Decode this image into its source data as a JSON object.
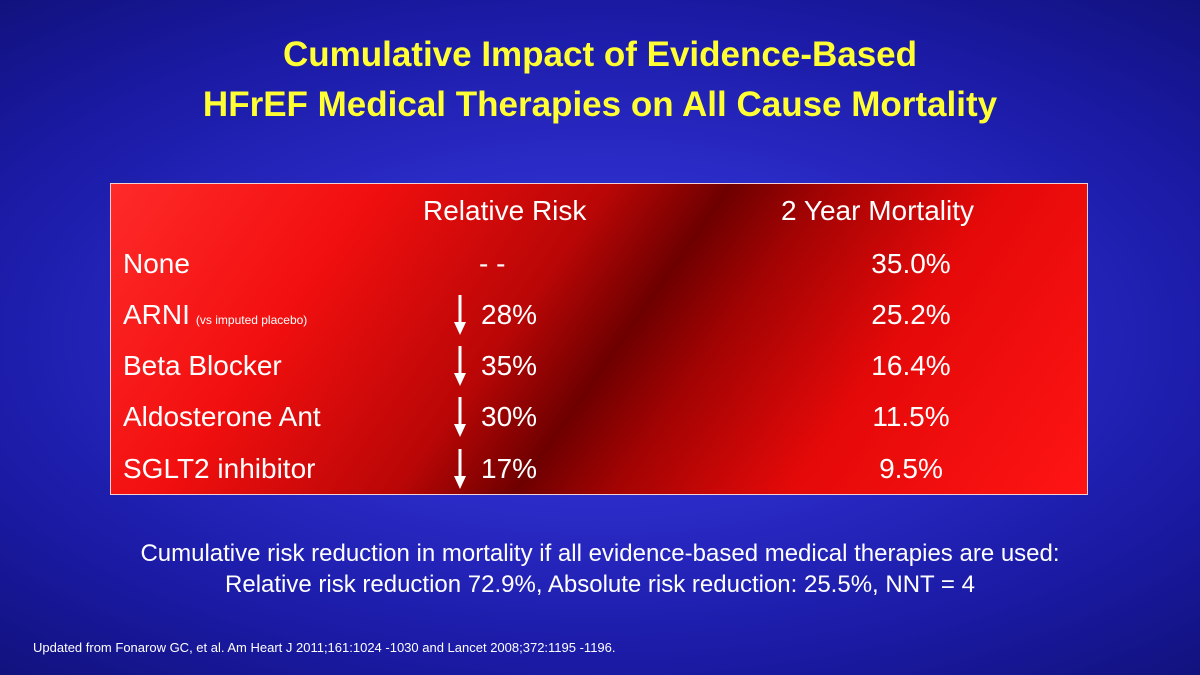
{
  "slide": {
    "title_line1": "Cumulative Impact of Evidence-Based",
    "title_line2": "HFrEF Medical Therapies on All Cause Mortality",
    "table": {
      "headers": {
        "relative_risk": "Relative Risk",
        "mortality": "2 Year Mortality"
      },
      "rows": [
        {
          "label": "None",
          "note": "",
          "rr": "- -",
          "mortality": "35.0%",
          "decrease": false
        },
        {
          "label": "ARNI",
          "note": "(vs imputed placebo)",
          "rr": "28%",
          "mortality": "25.2%",
          "decrease": true
        },
        {
          "label": "Beta Blocker",
          "note": "",
          "rr": "35%",
          "mortality": "16.4%",
          "decrease": true
        },
        {
          "label": "Aldosterone Ant",
          "note": "",
          "rr": "30%",
          "mortality": "11.5%",
          "decrease": true
        },
        {
          "label": "SGLT2 inhibitor",
          "note": "",
          "rr": "17%",
          "mortality": "9.5%",
          "decrease": true
        }
      ]
    },
    "summary_line1": "Cumulative risk reduction in mortality if all evidence-based medical therapies are used:",
    "summary_line2": "Relative risk reduction 72.9%, Absolute risk reduction: 25.5%, NNT = 4",
    "footnote": "Updated from Fonarow GC, et al. Am Heart J 2011;161:1024 -1030 and Lancet 2008;372:1195 -1196.",
    "colors": {
      "title": "#ffff33",
      "background": "#2a2ac6",
      "table_fill": "#e50909",
      "text": "#ffffff"
    },
    "icons": {
      "decrease": "down-arrow-icon"
    }
  }
}
